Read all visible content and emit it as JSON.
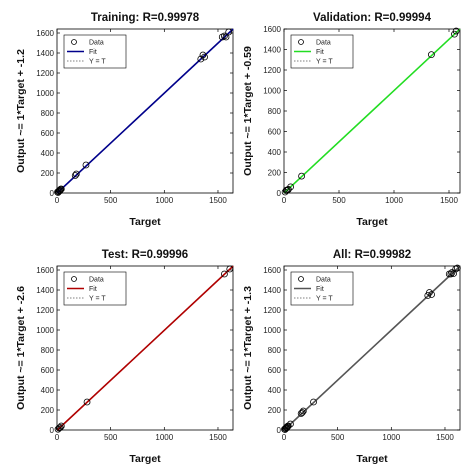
{
  "chart_data": [
    {
      "type": "scatter",
      "title": "Training: R=0.99978",
      "xlabel": "Target",
      "ylabel": "Output ~= 1*Target + -1.2",
      "xlim": [
        0,
        1640
      ],
      "ylim": [
        0,
        1640
      ],
      "xticks": [
        0,
        500,
        1000,
        1500
      ],
      "yticks": [
        0,
        200,
        400,
        600,
        800,
        1000,
        1200,
        1400,
        1600
      ],
      "fit_color": "#00008b",
      "fit_line": [
        [
          0,
          -1.2
        ],
        [
          1640,
          1638.8
        ]
      ],
      "legend": [
        "Data",
        "Fit",
        "Y = T"
      ],
      "legend_position": "top-left",
      "points": [
        {
          "x": 5,
          "y": 10
        },
        {
          "x": 10,
          "y": 5
        },
        {
          "x": 15,
          "y": 15
        },
        {
          "x": 20,
          "y": 25
        },
        {
          "x": 25,
          "y": 20
        },
        {
          "x": 30,
          "y": 30
        },
        {
          "x": 35,
          "y": 38
        },
        {
          "x": 40,
          "y": 40
        },
        {
          "x": 170,
          "y": 175
        },
        {
          "x": 180,
          "y": 190
        },
        {
          "x": 270,
          "y": 280
        },
        {
          "x": 1340,
          "y": 1340
        },
        {
          "x": 1360,
          "y": 1380
        },
        {
          "x": 1375,
          "y": 1360
        },
        {
          "x": 1540,
          "y": 1560
        },
        {
          "x": 1560,
          "y": 1570
        },
        {
          "x": 1575,
          "y": 1560
        },
        {
          "x": 1600,
          "y": 1610
        }
      ]
    },
    {
      "type": "scatter",
      "title": "Validation: R=0.99994",
      "xlabel": "Target",
      "ylabel": "Output ~= 1*Target + -0.59",
      "xlim": [
        0,
        1600
      ],
      "ylim": [
        0,
        1600
      ],
      "xticks": [
        0,
        500,
        1000,
        1500
      ],
      "yticks": [
        0,
        200,
        400,
        600,
        800,
        1000,
        1200,
        1400,
        1600
      ],
      "fit_color": "#22dd22",
      "fit_line": [
        [
          0,
          -0.59
        ],
        [
          1600,
          1599.41
        ]
      ],
      "legend": [
        "Data",
        "Fit",
        "Y = T"
      ],
      "legend_position": "top-left",
      "points": [
        {
          "x": 10,
          "y": 10
        },
        {
          "x": 20,
          "y": 25
        },
        {
          "x": 30,
          "y": 30
        },
        {
          "x": 40,
          "y": 35
        },
        {
          "x": 60,
          "y": 60
        },
        {
          "x": 160,
          "y": 165
        },
        {
          "x": 1340,
          "y": 1350
        },
        {
          "x": 1550,
          "y": 1550
        },
        {
          "x": 1565,
          "y": 1580
        }
      ]
    },
    {
      "type": "scatter",
      "title": "Test: R=0.99996",
      "xlabel": "Target",
      "ylabel": "Output ~= 1*Target + -2.6",
      "xlim": [
        0,
        1640
      ],
      "ylim": [
        0,
        1640
      ],
      "xticks": [
        0,
        500,
        1000,
        1500
      ],
      "yticks": [
        0,
        200,
        400,
        600,
        800,
        1000,
        1200,
        1400,
        1600
      ],
      "fit_color": "#b00000",
      "fit_line": [
        [
          0,
          -2.6
        ],
        [
          1640,
          1637.4
        ]
      ],
      "legend": [
        "Data",
        "Fit",
        "Y = T"
      ],
      "legend_position": "top-left",
      "points": [
        {
          "x": 10,
          "y": 8
        },
        {
          "x": 20,
          "y": 20
        },
        {
          "x": 30,
          "y": 25
        },
        {
          "x": 40,
          "y": 40
        },
        {
          "x": 280,
          "y": 280
        },
        {
          "x": 1560,
          "y": 1560
        },
        {
          "x": 1610,
          "y": 1610
        }
      ]
    },
    {
      "type": "scatter",
      "title": "All: R=0.99982",
      "xlabel": "Target",
      "ylabel": "Output ~= 1*Target + -1.3",
      "xlim": [
        0,
        1640
      ],
      "ylim": [
        0,
        1640
      ],
      "xticks": [
        0,
        500,
        1000,
        1500
      ],
      "yticks": [
        0,
        200,
        400,
        600,
        800,
        1000,
        1200,
        1400,
        1600
      ],
      "fit_color": "#555555",
      "fit_line": [
        [
          0,
          -1.3
        ],
        [
          1640,
          1638.7
        ]
      ],
      "legend": [
        "Data",
        "Fit",
        "Y = T"
      ],
      "legend_position": "top-left",
      "points": [
        {
          "x": 5,
          "y": 8
        },
        {
          "x": 10,
          "y": 5
        },
        {
          "x": 15,
          "y": 15
        },
        {
          "x": 20,
          "y": 25
        },
        {
          "x": 25,
          "y": 20
        },
        {
          "x": 30,
          "y": 30
        },
        {
          "x": 35,
          "y": 38
        },
        {
          "x": 40,
          "y": 40
        },
        {
          "x": 60,
          "y": 60
        },
        {
          "x": 160,
          "y": 165
        },
        {
          "x": 170,
          "y": 175
        },
        {
          "x": 180,
          "y": 190
        },
        {
          "x": 275,
          "y": 280
        },
        {
          "x": 1340,
          "y": 1345
        },
        {
          "x": 1355,
          "y": 1375
        },
        {
          "x": 1375,
          "y": 1355
        },
        {
          "x": 1540,
          "y": 1560
        },
        {
          "x": 1555,
          "y": 1560
        },
        {
          "x": 1565,
          "y": 1575
        },
        {
          "x": 1580,
          "y": 1565
        },
        {
          "x": 1600,
          "y": 1610
        },
        {
          "x": 1615,
          "y": 1620
        }
      ]
    }
  ]
}
